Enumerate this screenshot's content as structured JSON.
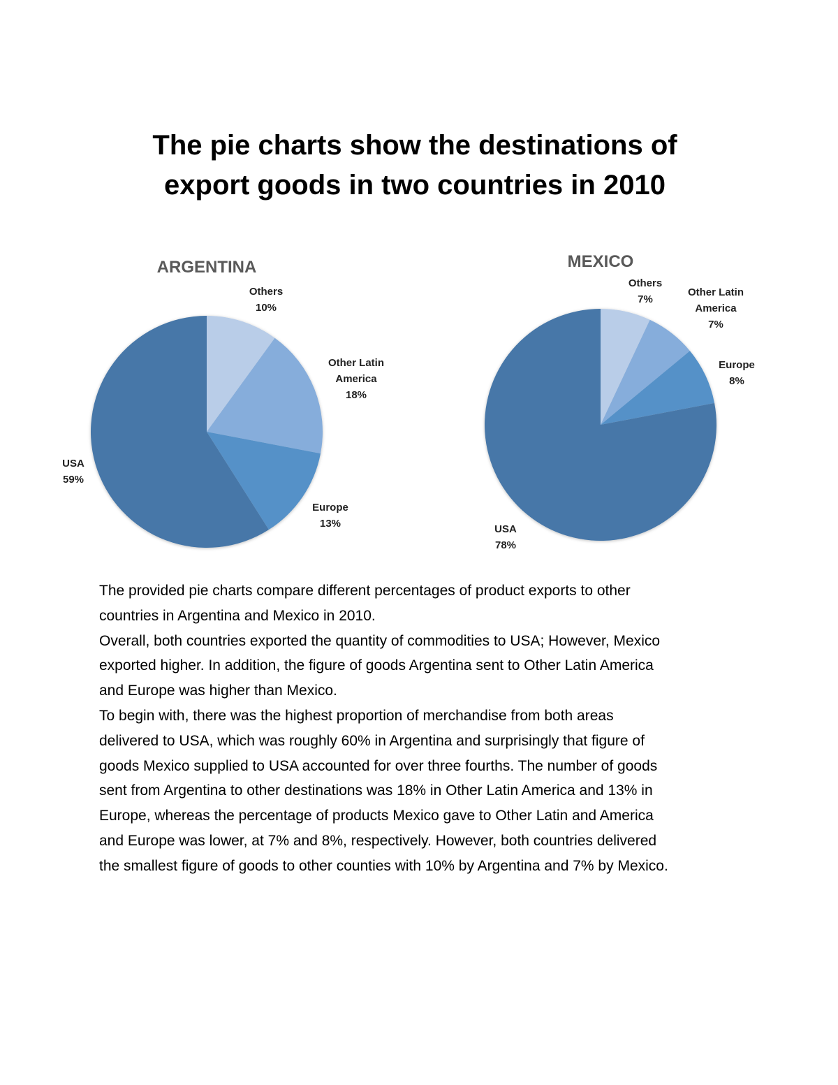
{
  "title_lines": [
    "The pie charts show the destinations of",
    "export goods in two countries in 2010"
  ],
  "chart_data": [
    {
      "type": "pie",
      "title": "ARGENTINA",
      "categories": [
        "Others",
        "Other Latin America",
        "Europe",
        "USA"
      ],
      "labels": [
        [
          "Others",
          "10%"
        ],
        [
          "Other Latin",
          "America",
          "18%"
        ],
        [
          "Europe",
          "13%"
        ],
        [
          "USA",
          "59%"
        ]
      ],
      "values": [
        10,
        18,
        13,
        59
      ],
      "colors": [
        "#b9cde8",
        "#86addb",
        "#5591c8",
        "#4677a8"
      ]
    },
    {
      "type": "pie",
      "title": "MEXICO",
      "categories": [
        "Others",
        "Other Latin America",
        "Europe",
        "USA"
      ],
      "labels": [
        [
          "Others",
          "7%"
        ],
        [
          "Other Latin",
          "America",
          "7%"
        ],
        [
          "Europe",
          "8%"
        ],
        [
          "USA",
          "78%"
        ]
      ],
      "values": [
        7,
        7,
        8,
        78
      ],
      "colors": [
        "#b9cde8",
        "#86addb",
        "#5591c8",
        "#4677a8"
      ]
    }
  ],
  "essay_lines": [
    "The provided pie charts compare different percentages of product exports to other",
    "countries in Argentina and Mexico in 2010.",
    "Overall, both countries exported the quantity of commodities to USA; However, Mexico",
    "exported higher. In addition, the figure of goods Argentina sent to Other Latin America",
    "and Europe was higher than Mexico.",
    "To begin with, there was the highest proportion of merchandise from both areas",
    "delivered to USA, which was roughly 60% in Argentina and surprisingly that figure of",
    "goods Mexico supplied to USA accounted for over three fourths. The number of goods",
    "sent from Argentina to other destinations was 18% in Other Latin America and 13% in",
    "Europe, whereas the percentage of products Mexico gave to Other Latin and America",
    "and Europe was lower, at 7% and 8%, respectively. However, both countries delivered",
    "the smallest figure of goods to other counties with 10% by Argentina and 7% by Mexico."
  ]
}
